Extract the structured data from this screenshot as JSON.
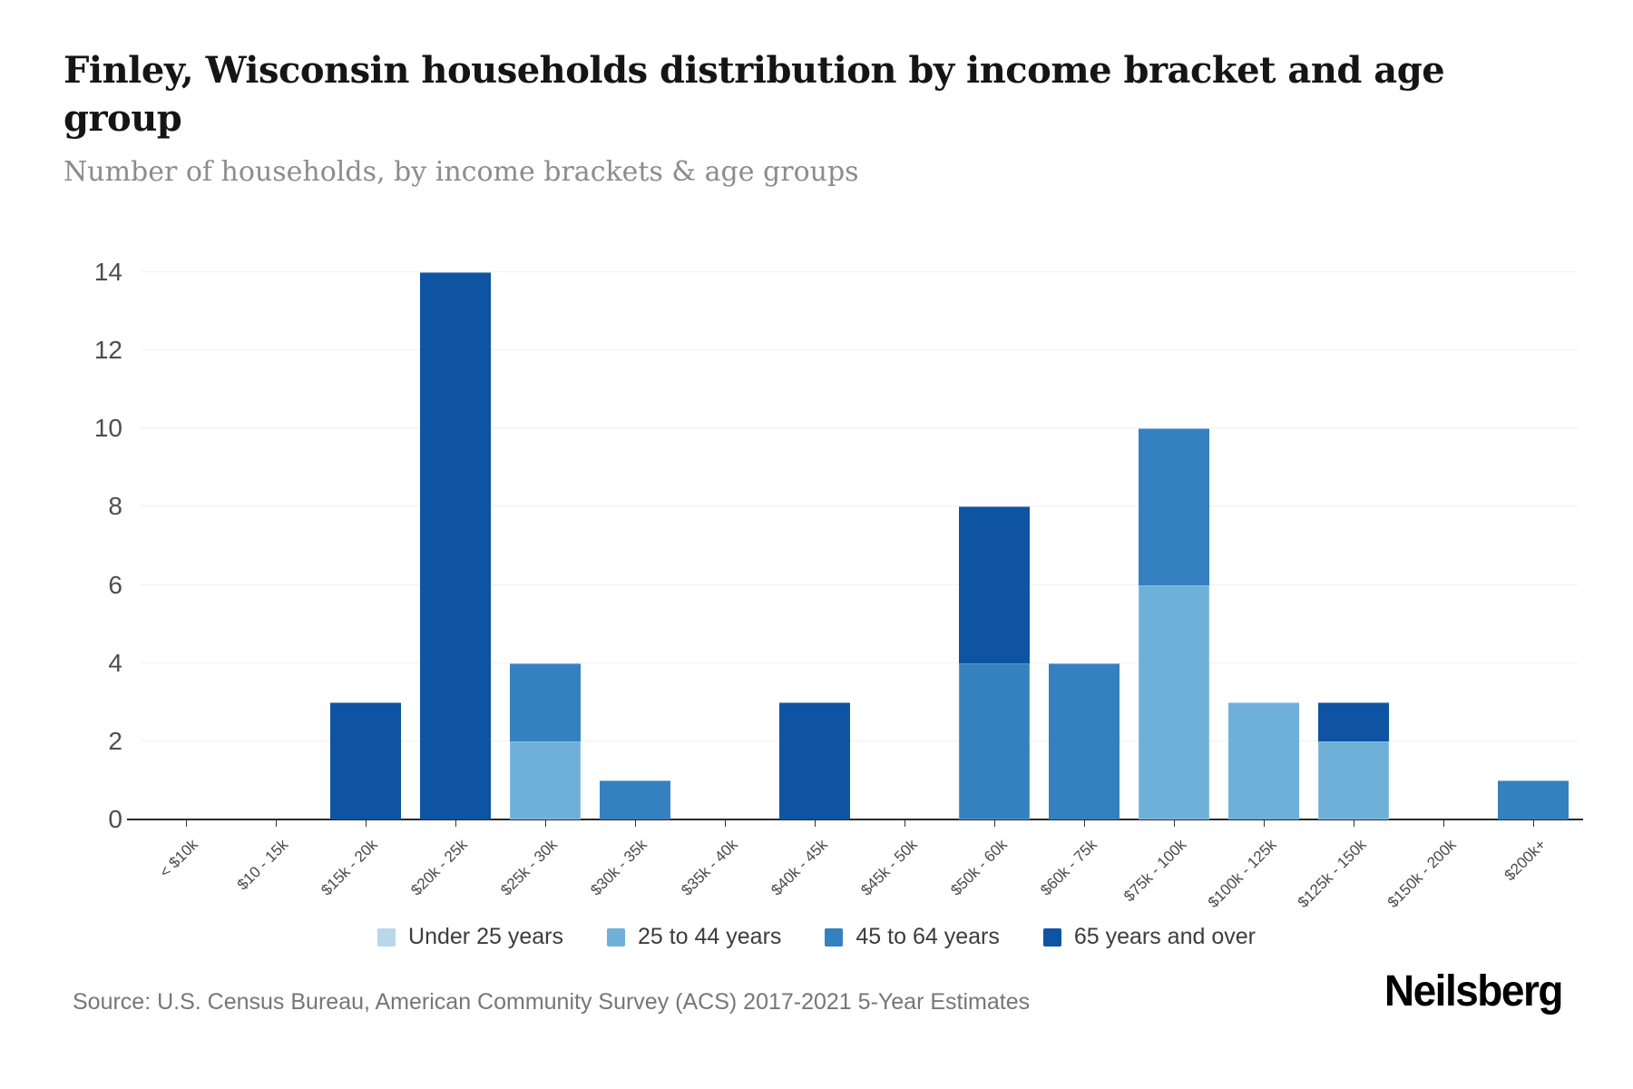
{
  "header": {
    "title": "Finley, Wisconsin households distribution by income bracket and age group",
    "subtitle": "Number of households, by income brackets & age groups"
  },
  "chart_data": {
    "type": "bar",
    "stacked": true,
    "title": "Finley, Wisconsin households distribution by income bracket and age group",
    "subtitle": "Number of households, by income brackets & age groups",
    "xlabel": "",
    "ylabel": "",
    "ylim": [
      0,
      14
    ],
    "yticks": [
      0,
      2,
      4,
      6,
      8,
      10,
      12,
      14
    ],
    "grid": true,
    "legend_position": "bottom",
    "categories": [
      "< $10k",
      "$10 - 15k",
      "$15k - 20k",
      "$20k - 25k",
      "$25k - 30k",
      "$30k - 35k",
      "$35k - 40k",
      "$40k - 45k",
      "$45k - 50k",
      "$50k - 60k",
      "$60k - 75k",
      "$75k - 100k",
      "$100k - 125k",
      "$125k - 150k",
      "$150k - 200k",
      "$200k+"
    ],
    "series": [
      {
        "name": "Under 25 years",
        "color": "#b9d7ea",
        "values": [
          0,
          0,
          0,
          0,
          0,
          0,
          0,
          0,
          0,
          0,
          0,
          0,
          0,
          0,
          0,
          0
        ]
      },
      {
        "name": "25 to 44 years",
        "color": "#6fb0d9",
        "values": [
          0,
          0,
          0,
          0,
          2,
          0,
          0,
          0,
          0,
          0,
          0,
          6,
          3,
          2,
          0,
          0
        ]
      },
      {
        "name": "45 to 64 years",
        "color": "#3581c0",
        "values": [
          0,
          0,
          0,
          0,
          2,
          1,
          0,
          0,
          0,
          4,
          4,
          4,
          0,
          0,
          0,
          1
        ]
      },
      {
        "name": "65 years and over",
        "color": "#0e54a2",
        "values": [
          0,
          0,
          3,
          14,
          0,
          0,
          0,
          3,
          0,
          4,
          0,
          0,
          0,
          1,
          0,
          0
        ]
      }
    ]
  },
  "footer": {
    "source": "Source: U.S. Census Bureau, American Community Survey (ACS) 2017-2021 5-Year Estimates",
    "brand": "Neilsberg"
  }
}
